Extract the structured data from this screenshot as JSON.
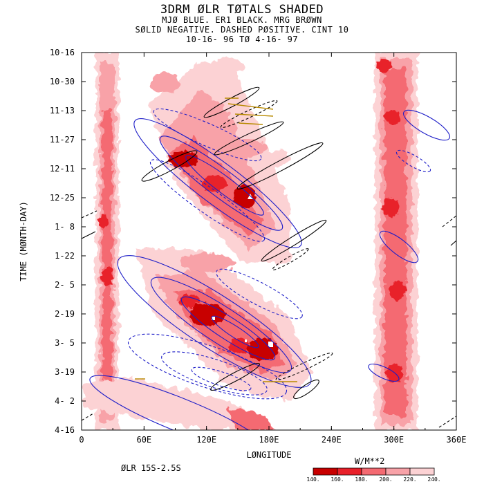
{
  "header": {
    "title": "3DRM ØLR TØTALS SHADED",
    "line2": "MJØ BLUE. ER1 BLACK. MRG BRØWN",
    "line3": "SØLID NEGATIVE. DASHED PØSITIVE. CINT 10",
    "line4": "10-16-  96 TØ  4-16-  97"
  },
  "footer": {
    "band_label": "ØLR 15S-2.5S",
    "units_label": "W/M**2"
  },
  "chart_data": {
    "type": "heatmap",
    "xlabel": "LØNGITUDE",
    "ylabel": "TIME (MØNTH-DAY)",
    "xlim": [
      0,
      360
    ],
    "x_ticks": [
      "0",
      "60E",
      "120E",
      "180E",
      "240E",
      "300E",
      "360E"
    ],
    "y_ticks": [
      "10-16",
      "10-30",
      "11-13",
      "11-27",
      "12-11",
      "12-25",
      "1- 8",
      "1-22",
      "2- 5",
      "2-19",
      "3- 5",
      "3-19",
      "4- 2",
      "4-16"
    ],
    "colorbar": {
      "levels": [
        "140.",
        "160.",
        "180.",
        "200.",
        "220.",
        "240."
      ],
      "colors": [
        "#c80000",
        "#e8202a",
        "#f46a72",
        "#f8a2a8",
        "#fcd2d4"
      ]
    },
    "series": [
      {
        "name": "MJØ",
        "color": "#1e1ec8"
      },
      {
        "name": "ER1",
        "color": "#000000"
      },
      {
        "name": "MRG",
        "color": "#b88a00"
      }
    ],
    "features": [
      {
        "type": "convective_band",
        "lon_range": [
          20,
          40
        ],
        "time": "10-16 to 4-16"
      },
      {
        "type": "convective_band",
        "lon_range": [
          280,
          310
        ],
        "time": "10-16 to 4-16"
      },
      {
        "type": "eastward_propagating_mjo",
        "from": {
          "lon": 90,
          "date": "11-27"
        },
        "to": {
          "lon": 190,
          "date": "1-15"
        }
      },
      {
        "type": "eastward_propagating_mjo",
        "from": {
          "lon": 100,
          "date": "2-5"
        },
        "to": {
          "lon": 200,
          "date": "3-19"
        }
      }
    ]
  }
}
